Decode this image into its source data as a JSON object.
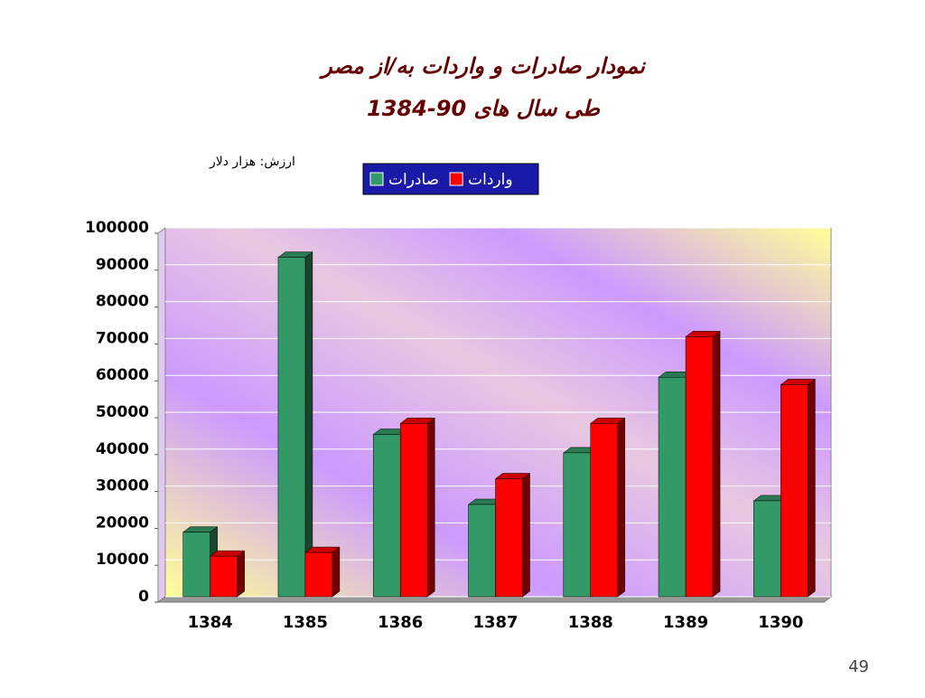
{
  "chart_data": {
    "type": "bar3d",
    "title": "نمودار صادرات و واردات به/از مصر",
    "subtitle": "طی سال های 90-1384",
    "unit_label": "ارزش: هزار دلار",
    "categories": [
      "1384",
      "1385",
      "1386",
      "1387",
      "1388",
      "1389",
      "1390"
    ],
    "series": [
      {
        "name": "صادرات",
        "color": "#339966",
        "values": [
          17500,
          92000,
          44000,
          25000,
          39000,
          59500,
          26000
        ]
      },
      {
        "name": "واردات",
        "color": "#ff0000",
        "values": [
          11000,
          12000,
          47000,
          32000,
          47000,
          70500,
          57500
        ]
      }
    ],
    "ylim": [
      0,
      100000
    ],
    "yticks": [
      0,
      10000,
      20000,
      30000,
      40000,
      50000,
      60000,
      70000,
      80000,
      90000,
      100000
    ],
    "grid": true
  },
  "page_number": "49"
}
